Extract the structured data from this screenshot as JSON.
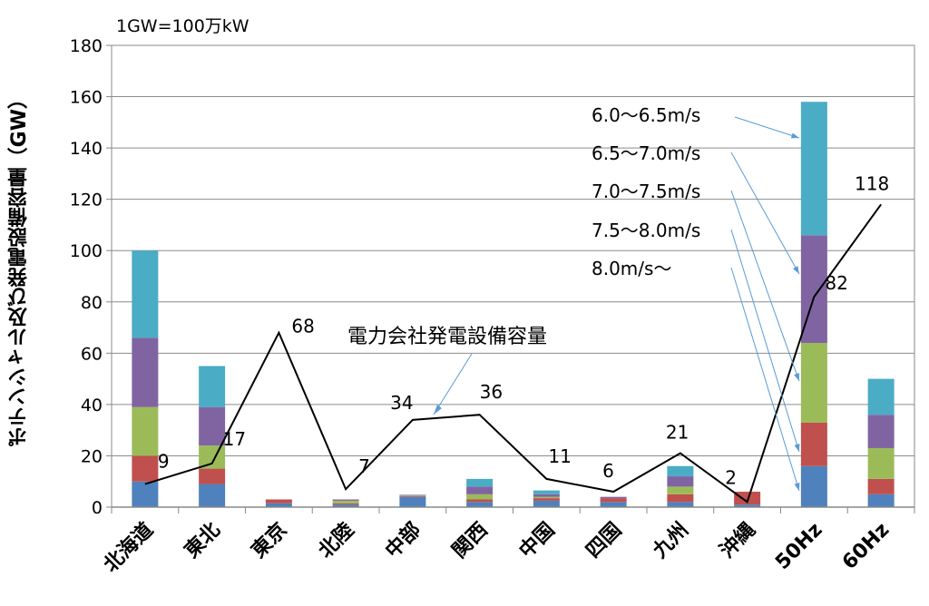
{
  "chart_data": {
    "type": "bar",
    "stacked": true,
    "unit_note": "1GW=100万kW",
    "ylabel": "ポテンシャル及び発電設備容量（GW）",
    "ylim": [
      0,
      180
    ],
    "yticks": [
      0,
      20,
      40,
      60,
      80,
      100,
      120,
      140,
      160,
      180
    ],
    "grid": "horizontal",
    "categories": [
      "北海道",
      "東北",
      "東京",
      "北陸",
      "中部",
      "関西",
      "中国",
      "四国",
      "九州",
      "沖縄",
      "50Hz",
      "60Hz"
    ],
    "series": [
      {
        "name": "8.0m/s〜",
        "color": "#4f81bd",
        "values": [
          10,
          9,
          1.5,
          1,
          4,
          2,
          2.5,
          2,
          2,
          1,
          16,
          5
        ]
      },
      {
        "name": "7.5〜8.0m/s",
        "color": "#c0504d",
        "values": [
          10,
          6,
          1.5,
          0.5,
          0.3,
          1,
          1,
          1.5,
          3,
          5,
          17,
          6
        ]
      },
      {
        "name": "7.0〜7.5m/s",
        "color": "#9bbb59",
        "values": [
          19,
          9,
          0,
          1,
          0.2,
          2,
          0.5,
          0,
          3,
          0,
          31,
          12
        ]
      },
      {
        "name": "6.5〜7.0m/s",
        "color": "#8064a2",
        "values": [
          27,
          15,
          0,
          0.5,
          0.3,
          3,
          1,
          0.5,
          4,
          0,
          42,
          13
        ]
      },
      {
        "name": "6.0〜6.5m/s",
        "color": "#4bacc6",
        "values": [
          34,
          16,
          0,
          0,
          0,
          3,
          1.5,
          0,
          4,
          0,
          52,
          14
        ]
      }
    ],
    "line": {
      "name": "電力会社発電設備容量",
      "color": "#000000",
      "values": [
        9,
        17,
        68,
        7,
        34,
        36,
        11,
        6,
        21,
        2,
        82,
        118
      ],
      "labels": [
        "9",
        "17",
        "68",
        "7",
        "34",
        "36",
        "11",
        "6",
        "21",
        "2",
        "82",
        "118"
      ]
    },
    "legend_labels": [
      "6.0〜6.5m/s",
      "6.5〜7.0m/s",
      "7.0〜7.5m/s",
      "7.5〜8.0m/s",
      "8.0m/s〜"
    ],
    "line_annotation": "電力会社発電設備容量"
  }
}
